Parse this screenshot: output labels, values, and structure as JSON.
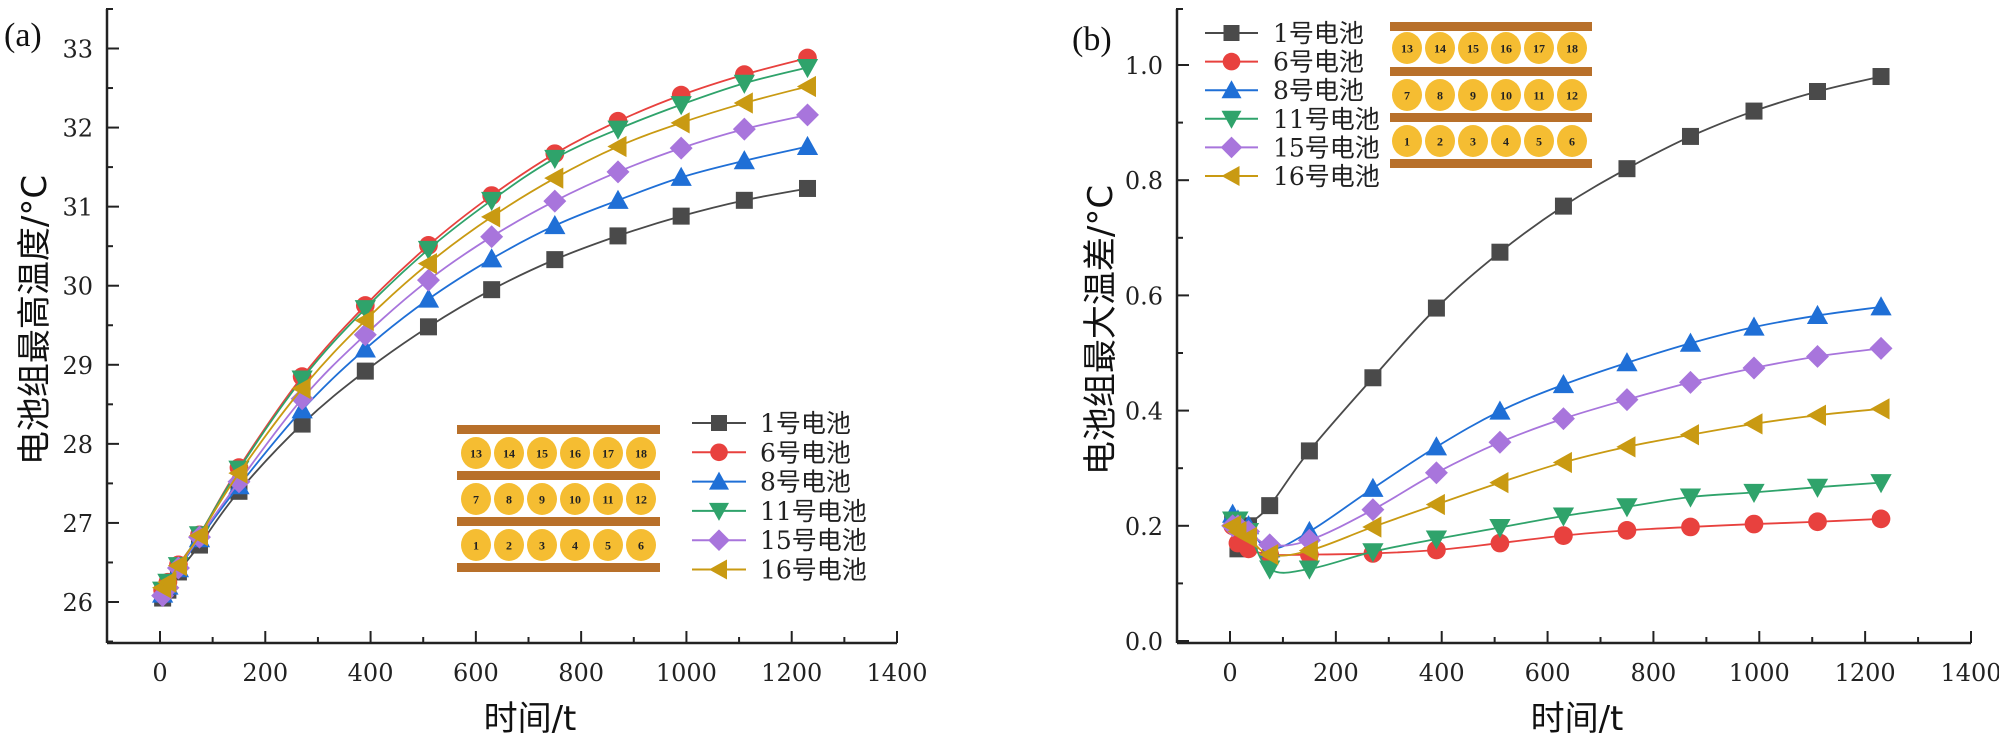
{
  "chart_data": [
    {
      "type": "line",
      "panel_label": "(a)",
      "xlabel": "时间/t",
      "ylabel": "电池组最高温度/°C",
      "xlim": [
        -100,
        1400
      ],
      "ylim": [
        25.5,
        33.5
      ],
      "xticks": [
        0,
        200,
        400,
        600,
        800,
        1000,
        1200,
        1400
      ],
      "xtick_labels": [
        "0",
        "200",
        "400",
        "600",
        "800",
        "1000",
        "1200",
        "1400"
      ],
      "yticks": [
        26,
        27,
        28,
        29,
        30,
        31,
        32,
        33
      ],
      "ytick_labels": [
        "26",
        "27",
        "28",
        "29",
        "30",
        "31",
        "32",
        "33"
      ],
      "grid": false,
      "legend_position": "bottom-right",
      "inset": "battery-layout",
      "x": [
        5,
        15,
        35,
        75,
        150,
        270,
        390,
        510,
        630,
        750,
        870,
        990,
        1110,
        1230
      ],
      "series": [
        {
          "name": "1号电池",
          "color": "#4a4a4a",
          "marker": "square",
          "values": [
            26.05,
            26.15,
            26.38,
            26.72,
            27.4,
            28.25,
            28.92,
            29.48,
            29.95,
            30.33,
            30.63,
            30.88,
            31.08,
            31.23
          ]
        },
        {
          "name": "6号电池",
          "color": "#e8413e",
          "marker": "circle",
          "values": [
            26.15,
            26.25,
            26.47,
            26.85,
            27.7,
            28.85,
            29.75,
            30.51,
            31.14,
            31.67,
            32.08,
            32.41,
            32.67,
            32.88
          ]
        },
        {
          "name": "8号电池",
          "color": "#1f6fd6",
          "marker": "triangle-up",
          "values": [
            26.1,
            26.2,
            26.42,
            26.8,
            27.47,
            28.43,
            29.2,
            29.83,
            30.34,
            30.76,
            31.08,
            31.37,
            31.58,
            31.76
          ]
        },
        {
          "name": "11号电池",
          "color": "#2fa36b",
          "marker": "triangle-down",
          "values": [
            26.15,
            26.25,
            26.46,
            26.85,
            27.68,
            28.82,
            29.71,
            30.46,
            31.08,
            31.61,
            31.98,
            32.29,
            32.56,
            32.76
          ]
        },
        {
          "name": "15号电池",
          "color": "#a875dc",
          "marker": "diamond",
          "values": [
            26.08,
            26.18,
            26.43,
            26.82,
            27.52,
            28.57,
            29.38,
            30.07,
            30.62,
            31.07,
            31.44,
            31.74,
            31.98,
            32.16
          ]
        },
        {
          "name": "16号电池",
          "color": "#c99a12",
          "marker": "triangle-left",
          "values": [
            26.18,
            26.25,
            26.46,
            26.84,
            27.63,
            28.7,
            29.56,
            30.28,
            30.87,
            31.36,
            31.76,
            32.06,
            32.31,
            32.52
          ]
        }
      ]
    },
    {
      "type": "line",
      "panel_label": "(b)",
      "xlabel": "时间/t",
      "ylabel": "电池组最大温差/°C",
      "xlim": [
        -100,
        1400
      ],
      "ylim": [
        0.0,
        1.1
      ],
      "xticks": [
        0,
        200,
        400,
        600,
        800,
        1000,
        1200,
        1400
      ],
      "xtick_labels": [
        "0",
        "200",
        "400",
        "600",
        "800",
        "1000",
        "1200",
        "1400"
      ],
      "yticks": [
        0.0,
        0.2,
        0.4,
        0.6,
        0.8,
        1.0
      ],
      "ytick_labels": [
        "0.0",
        "0.2",
        "0.4",
        "0.6",
        "0.8",
        "1.0"
      ],
      "grid": false,
      "legend_position": "top-left",
      "inset": "battery-layout",
      "x": [
        5,
        15,
        35,
        75,
        150,
        270,
        390,
        510,
        630,
        750,
        870,
        990,
        1110,
        1230
      ],
      "series": [
        {
          "name": "1号电池",
          "color": "#4a4a4a",
          "marker": "square",
          "values": [
            0.21,
            0.16,
            0.2,
            0.235,
            0.33,
            0.457,
            0.578,
            0.675,
            0.755,
            0.82,
            0.876,
            0.92,
            0.954,
            0.98
          ]
        },
        {
          "name": "6号电池",
          "color": "#e8413e",
          "marker": "circle",
          "values": [
            0.2,
            0.17,
            0.16,
            0.15,
            0.15,
            0.152,
            0.158,
            0.17,
            0.183,
            0.192,
            0.198,
            0.203,
            0.207,
            0.212
          ]
        },
        {
          "name": "8号电池",
          "color": "#1f6fd6",
          "marker": "triangle-up",
          "values": [
            0.22,
            0.21,
            0.2,
            0.16,
            0.19,
            0.265,
            0.337,
            0.399,
            0.445,
            0.483,
            0.517,
            0.545,
            0.565,
            0.58
          ]
        },
        {
          "name": "11号电池",
          "color": "#2fa36b",
          "marker": "triangle-down",
          "values": [
            0.21,
            0.21,
            0.19,
            0.125,
            0.125,
            0.155,
            0.177,
            0.197,
            0.217,
            0.233,
            0.25,
            0.258,
            0.267,
            0.275
          ]
        },
        {
          "name": "15号电池",
          "color": "#a875dc",
          "marker": "diamond",
          "values": [
            0.2,
            0.2,
            0.19,
            0.167,
            0.175,
            0.228,
            0.292,
            0.345,
            0.386,
            0.419,
            0.449,
            0.474,
            0.494,
            0.508
          ]
        },
        {
          "name": "16号电池",
          "color": "#c99a12",
          "marker": "triangle-left",
          "values": [
            0.2,
            0.19,
            0.18,
            0.15,
            0.157,
            0.198,
            0.237,
            0.275,
            0.31,
            0.337,
            0.358,
            0.377,
            0.392,
            0.403
          ]
        }
      ]
    }
  ],
  "inset_layout": {
    "rows": [
      [
        "13",
        "14",
        "15",
        "16",
        "17",
        "18"
      ],
      [
        "7",
        "8",
        "9",
        "10",
        "11",
        "12"
      ],
      [
        "1",
        "2",
        "3",
        "4",
        "5",
        "6"
      ]
    ],
    "cell_color": "#f5bd32",
    "plate_color": "#b8702a"
  }
}
